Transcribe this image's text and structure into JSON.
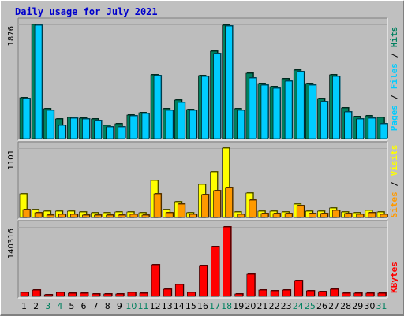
{
  "title": "Daily usage for July 2021",
  "colors": {
    "hits": "#00805f",
    "files": "#00ccff",
    "pages": "#00ccff",
    "sites": "#ff9900",
    "visits": "#ffff00",
    "kbytes": "#ff0000",
    "weekday": "#000000",
    "weekend": "#00805f",
    "panel": "#bdbdbd"
  },
  "chart_data": {
    "type": "bar",
    "categories": [
      "1",
      "2",
      "3",
      "4",
      "5",
      "6",
      "7",
      "8",
      "9",
      "10",
      "11",
      "12",
      "13",
      "14",
      "15",
      "16",
      "17",
      "18",
      "19",
      "20",
      "21",
      "22",
      "23",
      "24",
      "25",
      "26",
      "27",
      "28",
      "29",
      "30",
      "31"
    ],
    "weekend_days": [
      3,
      4,
      10,
      11,
      17,
      18,
      24,
      25,
      31
    ],
    "panels": [
      {
        "id": "hits",
        "ymax": 1876,
        "ymax_label": "1876",
        "legend": [
          {
            "text": "Pages",
            "color_key": "pages"
          },
          {
            "text": " / ",
            "color_key": "weekday"
          },
          {
            "text": "Files",
            "color_key": "files"
          },
          {
            "text": " / ",
            "color_key": "weekday"
          },
          {
            "text": "Hits",
            "color_key": "hits"
          }
        ],
        "series": [
          {
            "key": "hits",
            "values": [
              675,
              1876,
              495,
              325,
              352,
              338,
              317,
              217,
              240,
              392,
              432,
              1045,
              492,
              637,
              480,
              1035,
              1430,
              1868,
              492,
              1068,
              902,
              860,
              980,
              1125,
              910,
              660,
              1045,
              500,
              362,
              380,
              345
            ]
          },
          {
            "key": "files",
            "values": [
              660,
              1861,
              470,
              218,
              330,
              320,
              298,
              200,
              195,
              378,
              420,
              1030,
              470,
              600,
              460,
              1020,
              1400,
              1850,
              470,
              990,
              880,
              830,
              945,
              1100,
              880,
              610,
              1020,
              440,
              320,
              340,
              240
            ]
          }
        ]
      },
      {
        "id": "visits",
        "ymax": 1101,
        "ymax_label": "1101",
        "legend": [
          {
            "text": "Sites",
            "color_key": "sites"
          },
          {
            "text": " / ",
            "color_key": "weekday"
          },
          {
            "text": "Visits",
            "color_key": "visits"
          }
        ],
        "series": [
          {
            "key": "visits",
            "values": [
              370,
              130,
              95,
              105,
              100,
              85,
              80,
              70,
              90,
              85,
              75,
              590,
              120,
              250,
              80,
              520,
              730,
              1101,
              85,
              385,
              95,
              95,
              90,
              210,
              100,
              100,
              145,
              90,
              80,
              110,
              90
            ]
          },
          {
            "key": "sites",
            "values": [
              125,
              75,
              40,
              45,
              50,
              40,
              40,
              35,
              40,
              45,
              40,
              370,
              80,
              210,
              50,
              365,
              430,
              480,
              55,
              280,
              65,
              65,
              65,
              190,
              65,
              65,
              110,
              60,
              55,
              70,
              45
            ]
          }
        ]
      },
      {
        "id": "kbytes",
        "ymax": 140316,
        "ymax_label": "140316",
        "legend": [
          {
            "text": "KBytes",
            "color_key": "kbytes"
          }
        ],
        "series": [
          {
            "key": "kbytes",
            "values": [
              7300,
              13500,
              3800,
              7300,
              6200,
              6200,
              5000,
              4100,
              4600,
              7300,
              6300,
              63000,
              15000,
              24500,
              8000,
              62000,
              100000,
              140316,
              5200,
              45000,
              12200,
              11000,
              12000,
              32000,
              11500,
              9700,
              14000,
              6600,
              5700,
              6600,
              6600
            ]
          }
        ]
      }
    ]
  }
}
